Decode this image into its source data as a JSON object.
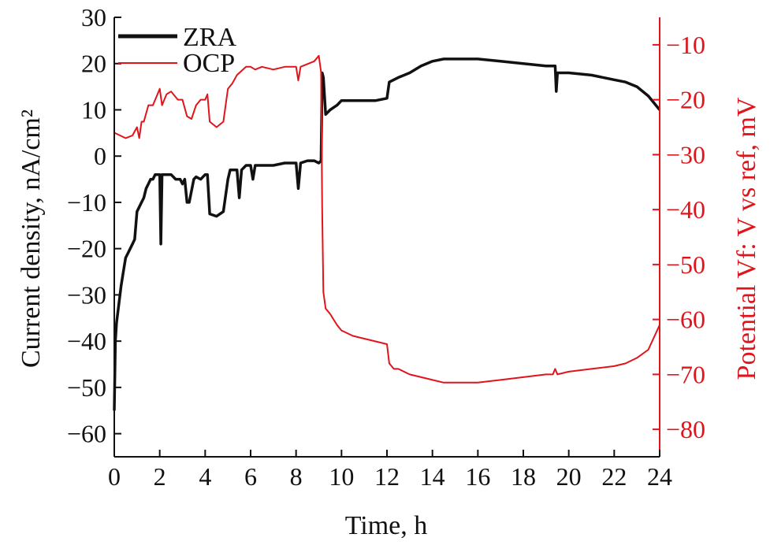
{
  "chart_data": {
    "type": "line",
    "xlabel": "Time, h",
    "ylabel": "Current density, nA/cm²",
    "y2label": "Potential Vf: V vs ref, mV",
    "xlim": [
      0,
      24
    ],
    "ylim": [
      -65,
      30
    ],
    "y2lim": [
      -85,
      -5
    ],
    "xticks": [
      "0",
      "2",
      "4",
      "6",
      "8",
      "10",
      "12",
      "14",
      "16",
      "18",
      "20",
      "22",
      "24"
    ],
    "yticks": [
      "30",
      "20",
      "10",
      "0",
      "−10",
      "−20",
      "−30",
      "−40",
      "−50",
      "−60"
    ],
    "y2ticks": [
      "−10",
      "−20",
      "−30",
      "−40",
      "−50",
      "−60",
      "−70",
      "−80"
    ],
    "grid": false,
    "legend": "top-left",
    "colors": {
      "ZRA": "#111111",
      "OCP": "#e0141b",
      "right_axis": "#e0141b"
    },
    "series": [
      {
        "name": "ZRA",
        "axis": "left",
        "points": [
          [
            0,
            -55
          ],
          [
            0.05,
            -40
          ],
          [
            0.1,
            -36
          ],
          [
            0.2,
            -32
          ],
          [
            0.3,
            -28
          ],
          [
            0.4,
            -25
          ],
          [
            0.5,
            -22
          ],
          [
            0.6,
            -21
          ],
          [
            0.7,
            -20
          ],
          [
            0.8,
            -19
          ],
          [
            0.9,
            -18
          ],
          [
            1.0,
            -12
          ],
          [
            1.1,
            -11
          ],
          [
            1.2,
            -10
          ],
          [
            1.3,
            -9
          ],
          [
            1.4,
            -7
          ],
          [
            1.5,
            -6
          ],
          [
            1.6,
            -5
          ],
          [
            1.7,
            -5
          ],
          [
            1.8,
            -4
          ],
          [
            1.9,
            -4
          ],
          [
            2.0,
            -4
          ],
          [
            2.05,
            -19
          ],
          [
            2.1,
            -4
          ],
          [
            2.2,
            -4
          ],
          [
            2.3,
            -4
          ],
          [
            2.5,
            -4
          ],
          [
            2.7,
            -5
          ],
          [
            2.9,
            -5
          ],
          [
            3.0,
            -6
          ],
          [
            3.1,
            -5
          ],
          [
            3.2,
            -10
          ],
          [
            3.3,
            -10
          ],
          [
            3.5,
            -5
          ],
          [
            3.6,
            -4.5
          ],
          [
            3.8,
            -5
          ],
          [
            4.0,
            -4
          ],
          [
            4.1,
            -4
          ],
          [
            4.2,
            -12.5
          ],
          [
            4.5,
            -13
          ],
          [
            4.8,
            -12
          ],
          [
            5.0,
            -5
          ],
          [
            5.1,
            -3
          ],
          [
            5.4,
            -3
          ],
          [
            5.5,
            -9
          ],
          [
            5.6,
            -3
          ],
          [
            5.8,
            -2
          ],
          [
            6.0,
            -2
          ],
          [
            6.1,
            -5
          ],
          [
            6.2,
            -2
          ],
          [
            6.5,
            -2
          ],
          [
            7.0,
            -2
          ],
          [
            7.5,
            -1.5
          ],
          [
            8.0,
            -1.5
          ],
          [
            8.1,
            -7
          ],
          [
            8.2,
            -1.5
          ],
          [
            8.5,
            -1
          ],
          [
            8.8,
            -1
          ],
          [
            9.0,
            -1.5
          ],
          [
            9.1,
            -1
          ],
          [
            9.15,
            18
          ],
          [
            9.2,
            17
          ],
          [
            9.3,
            9
          ],
          [
            9.5,
            10
          ],
          [
            9.8,
            11
          ],
          [
            10.0,
            12
          ],
          [
            10.5,
            12
          ],
          [
            11.0,
            12
          ],
          [
            11.5,
            12
          ],
          [
            12.0,
            12.5
          ],
          [
            12.1,
            16
          ],
          [
            12.5,
            17
          ],
          [
            13.0,
            18
          ],
          [
            13.5,
            19.5
          ],
          [
            14.0,
            20.5
          ],
          [
            14.5,
            21
          ],
          [
            15.0,
            21
          ],
          [
            16.0,
            21
          ],
          [
            17.0,
            20.5
          ],
          [
            18.0,
            20
          ],
          [
            19.0,
            19.5
          ],
          [
            19.4,
            19.5
          ],
          [
            19.45,
            14
          ],
          [
            19.5,
            18
          ],
          [
            20.0,
            18
          ],
          [
            21.0,
            17.5
          ],
          [
            22.0,
            16.5
          ],
          [
            22.5,
            16
          ],
          [
            23.0,
            15
          ],
          [
            23.5,
            13
          ],
          [
            24.0,
            10
          ]
        ]
      },
      {
        "name": "OCP",
        "axis": "right",
        "points": [
          [
            0,
            -26
          ],
          [
            0.5,
            -27
          ],
          [
            0.8,
            -26.5
          ],
          [
            1.0,
            -25
          ],
          [
            1.1,
            -27
          ],
          [
            1.2,
            -24
          ],
          [
            1.3,
            -24
          ],
          [
            1.5,
            -21
          ],
          [
            1.7,
            -21
          ],
          [
            1.9,
            -19
          ],
          [
            2.0,
            -18
          ],
          [
            2.1,
            -21
          ],
          [
            2.3,
            -19
          ],
          [
            2.5,
            -18.5
          ],
          [
            2.8,
            -20
          ],
          [
            3.0,
            -20
          ],
          [
            3.2,
            -23
          ],
          [
            3.4,
            -23.5
          ],
          [
            3.6,
            -21
          ],
          [
            3.8,
            -20
          ],
          [
            4.0,
            -20
          ],
          [
            4.1,
            -19
          ],
          [
            4.2,
            -24
          ],
          [
            4.5,
            -25
          ],
          [
            4.8,
            -24
          ],
          [
            5.0,
            -18
          ],
          [
            5.2,
            -17
          ],
          [
            5.4,
            -15.5
          ],
          [
            5.8,
            -14
          ],
          [
            6.0,
            -14
          ],
          [
            6.2,
            -14.5
          ],
          [
            6.5,
            -14
          ],
          [
            7.0,
            -14.5
          ],
          [
            7.5,
            -14
          ],
          [
            8.0,
            -14
          ],
          [
            8.1,
            -16.5
          ],
          [
            8.2,
            -14
          ],
          [
            8.5,
            -13.5
          ],
          [
            8.8,
            -13
          ],
          [
            9.0,
            -12
          ],
          [
            9.1,
            -15
          ],
          [
            9.15,
            -40
          ],
          [
            9.2,
            -55
          ],
          [
            9.3,
            -58
          ],
          [
            9.5,
            -59
          ],
          [
            9.8,
            -61
          ],
          [
            10.0,
            -62
          ],
          [
            10.5,
            -63
          ],
          [
            11.0,
            -63.5
          ],
          [
            11.5,
            -64
          ],
          [
            12.0,
            -64.5
          ],
          [
            12.1,
            -68
          ],
          [
            12.3,
            -69
          ],
          [
            12.5,
            -69
          ],
          [
            13.0,
            -70
          ],
          [
            13.5,
            -70.5
          ],
          [
            14.0,
            -71
          ],
          [
            14.5,
            -71.5
          ],
          [
            15.0,
            -71.5
          ],
          [
            16.0,
            -71.5
          ],
          [
            17.0,
            -71
          ],
          [
            18.0,
            -70.5
          ],
          [
            19.0,
            -70
          ],
          [
            19.3,
            -70
          ],
          [
            19.4,
            -69
          ],
          [
            19.5,
            -70
          ],
          [
            20.0,
            -69.5
          ],
          [
            21.0,
            -69
          ],
          [
            22.0,
            -68.5
          ],
          [
            22.5,
            -68
          ],
          [
            23.0,
            -67
          ],
          [
            23.5,
            -65.5
          ],
          [
            24.0,
            -61
          ]
        ]
      }
    ]
  }
}
